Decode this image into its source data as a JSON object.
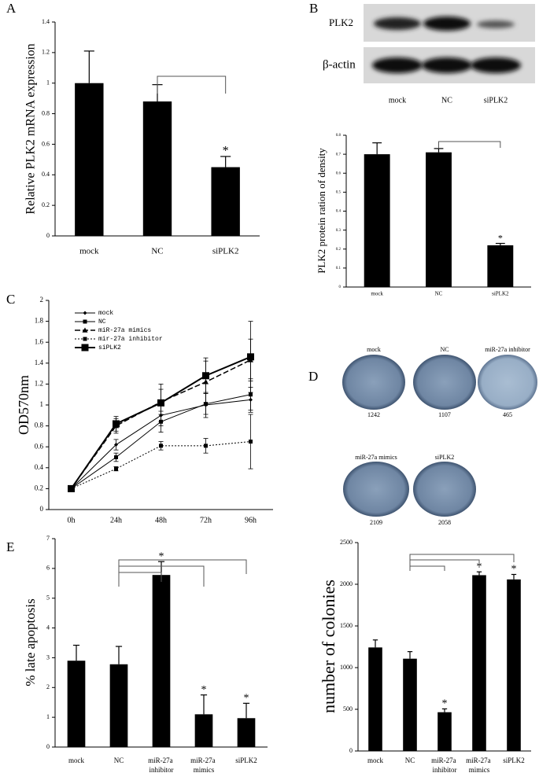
{
  "chart_data": [
    {
      "type": "bar",
      "panel": "A",
      "ylabel": "Relative PLK2 mRNA expression",
      "color": "#000000",
      "categories": [
        "mock",
        "NC",
        "siPLK2"
      ],
      "values": [
        1.0,
        0.88,
        0.45
      ],
      "errors": [
        0.21,
        0.11,
        0.07
      ],
      "annotations": [
        null,
        null,
        "*"
      ],
      "ylim": [
        0,
        1.4
      ],
      "yticks": [
        0,
        0.2,
        0.4,
        0.6,
        0.8,
        1,
        1.2,
        1.4
      ]
    },
    {
      "type": "bar",
      "ylabel": "PLK2 protein ration of density",
      "color": "#000000",
      "categories": [
        "mock",
        "NC",
        "siPLK2"
      ],
      "values": [
        0.7,
        0.71,
        0.22
      ],
      "errors": [
        0.06,
        0.02,
        0.01
      ],
      "annotations": [
        null,
        null,
        "*"
      ],
      "ylim": [
        0,
        0.8
      ],
      "yticks": [
        0,
        0.1,
        0.2,
        0.3,
        0.4,
        0.5,
        0.6,
        0.7,
        0.8
      ]
    },
    {
      "type": "line",
      "panel": "C",
      "ylabel": "OD570nm",
      "categories": [
        "0h",
        "24h",
        "48h",
        "72h",
        "96h"
      ],
      "series": [
        {
          "name": "mock",
          "color": "#000000",
          "line_style": "solid",
          "marker": "diamond",
          "values": [
            0.2,
            0.62,
            0.9,
            1.0,
            1.05
          ],
          "errors": [
            0.01,
            0.05,
            0.1,
            0.12,
            0.12
          ]
        },
        {
          "name": "NC",
          "color": "#000000",
          "line_style": "solid",
          "marker": "square",
          "values": [
            0.2,
            0.5,
            0.84,
            1.01,
            1.1
          ],
          "errors": [
            0.01,
            0.04,
            0.1,
            0.1,
            0.15
          ]
        },
        {
          "name": "miR-27a mimics",
          "color": "#000000",
          "line_style": "dashed",
          "marker": "triangle",
          "values": [
            0.2,
            0.8,
            1.03,
            1.22,
            1.43
          ],
          "errors": [
            0.01,
            0.07,
            0.12,
            0.2,
            0.2
          ]
        },
        {
          "name": "mir-27a inhibitor",
          "color": "#000000",
          "line_style": "dotted",
          "marker": "square",
          "values": [
            0.2,
            0.39,
            0.61,
            0.61,
            0.65
          ],
          "errors": [
            0.01,
            0.02,
            0.04,
            0.07,
            0.26
          ]
        },
        {
          "name": "siPLK2",
          "color": "#000000",
          "line_style": "thick",
          "marker": "big-square",
          "values": [
            0.2,
            0.82,
            1.02,
            1.28,
            1.46
          ],
          "errors": [
            0.01,
            0.07,
            0.18,
            0.17,
            0.34
          ]
        }
      ],
      "ylim": [
        0,
        2
      ],
      "yticks": [
        0,
        0.2,
        0.4,
        0.6,
        0.8,
        1,
        1.2,
        1.4,
        1.6,
        1.8,
        2
      ]
    },
    {
      "type": "bar",
      "ylabel": "number of colonies",
      "color": "#000000",
      "categories": [
        "mock",
        "NC",
        "miR-27a inhibitor",
        "miR-27a mimics",
        "siPLK2"
      ],
      "values": [
        1242,
        1107,
        465,
        2109,
        2058
      ],
      "errors": [
        90,
        85,
        40,
        40,
        60
      ],
      "annotations": [
        null,
        null,
        "*",
        "*",
        "*"
      ],
      "ylim": [
        0,
        2500
      ],
      "yticks": [
        0,
        500,
        1000,
        1500,
        2000,
        2500
      ]
    },
    {
      "type": "bar",
      "panel": "E",
      "ylabel": "% late apoptosis",
      "color": "#000000",
      "categories": [
        "mock",
        "NC",
        "miR-27a inhibitor",
        "miR-27a mimics",
        "siPLK2"
      ],
      "values": [
        2.9,
        2.78,
        5.78,
        1.1,
        0.97
      ],
      "errors": [
        0.52,
        0.6,
        0.45,
        0.65,
        0.5
      ],
      "annotations": [
        null,
        null,
        "*",
        "*",
        "*"
      ],
      "ylim": [
        0,
        7
      ],
      "yticks": [
        0,
        1,
        2,
        3,
        4,
        5,
        6,
        7
      ]
    }
  ],
  "blot": {
    "panel": "B",
    "rows": [
      "PLK2",
      "β-actin"
    ],
    "lanes": [
      "mock",
      "NC",
      "siPLK2"
    ]
  },
  "colony_plates": {
    "panel": "D",
    "plates": [
      {
        "label": "mock",
        "count": 1242
      },
      {
        "label": "NC",
        "count": 1107
      },
      {
        "label": "miR-27a inhibitor",
        "count": 465
      },
      {
        "label": "miR-27a mimics",
        "count": 2109
      },
      {
        "label": "siPLK2",
        "count": 2058
      }
    ]
  }
}
